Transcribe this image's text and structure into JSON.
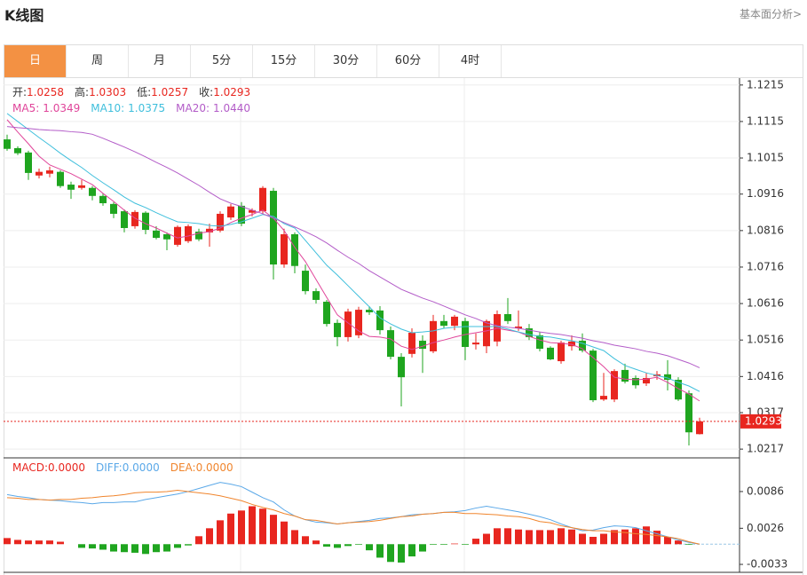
{
  "header": {
    "title": "K线图",
    "link": "基本面分析>"
  },
  "tabs": [
    "日",
    "周",
    "月",
    "5分",
    "15分",
    "30分",
    "60分",
    "4时"
  ],
  "chart_data": [
    {
      "type": "candlestick",
      "info": [
        {
          "label": "开:",
          "value": "1.0258"
        },
        {
          "label": "高:",
          "value": "1.0303"
        },
        {
          "label": "低:",
          "value": "1.0257"
        },
        {
          "label": "收:",
          "value": "1.0293"
        }
      ],
      "up_color": "#e8261f",
      "down_color": "#1fa51f",
      "open": [
        1.1066,
        1.1042,
        1.103,
        1.0967,
        1.0972,
        1.0977,
        1.0942,
        1.0933,
        1.0933,
        1.0911,
        1.0889,
        1.0869,
        1.0828,
        1.0865,
        1.0816,
        1.0806,
        1.0777,
        1.0787,
        1.0813,
        1.0811,
        1.0816,
        1.0852,
        1.0884,
        1.0865,
        1.0869,
        1.0925,
        1.0723,
        1.0806,
        1.0706,
        1.065,
        1.0621,
        1.0563,
        1.0524,
        1.0529,
        1.0599,
        1.0597,
        1.0543,
        1.047,
        1.0478,
        1.0514,
        1.0485,
        1.0568,
        1.0555,
        1.0568,
        1.0504,
        1.0499,
        1.0512,
        1.0587,
        1.0548,
        1.0548,
        1.0529,
        1.0495,
        1.0458,
        1.0499,
        1.0514,
        1.0487,
        1.0353,
        1.0353,
        1.0434,
        1.0412,
        1.0397,
        1.0417,
        1.0422,
        1.0407,
        1.037,
        1.0258
      ],
      "high": [
        1.1079,
        1.1047,
        1.1035,
        1.0986,
        1.0991,
        1.0981,
        1.095,
        1.0955,
        1.0938,
        1.0918,
        1.0894,
        1.0874,
        1.0872,
        1.0869,
        1.0828,
        1.0811,
        1.083,
        1.0833,
        1.0821,
        1.0835,
        1.0869,
        1.0889,
        1.0894,
        1.0877,
        1.0938,
        1.0933,
        1.0821,
        1.0811,
        1.0723,
        1.0658,
        1.0626,
        1.0572,
        1.0602,
        1.0607,
        1.0609,
        1.0609,
        1.0553,
        1.048,
        1.0548,
        1.0529,
        1.0585,
        1.0585,
        1.0585,
        1.0577,
        1.0534,
        1.0572,
        1.0597,
        1.0631,
        1.0597,
        1.056,
        1.0538,
        1.0499,
        1.0514,
        1.0529,
        1.0534,
        1.0492,
        1.0426,
        1.0436,
        1.0451,
        1.0419,
        1.0426,
        1.0431,
        1.0461,
        1.0414,
        1.0378,
        1.0303
      ],
      "low": [
        1.1035,
        1.1023,
        1.0955,
        1.0959,
        1.0962,
        1.0933,
        1.0903,
        1.0928,
        1.0899,
        1.0884,
        1.085,
        1.0811,
        1.0821,
        1.0806,
        1.0792,
        1.0762,
        1.0772,
        1.0782,
        1.0787,
        1.0772,
        1.0811,
        1.0845,
        1.0828,
        1.0855,
        1.0862,
        1.0682,
        1.0714,
        1.0699,
        1.0641,
        1.0616,
        1.0553,
        1.0499,
        1.0512,
        1.0521,
        1.0585,
        1.0531,
        1.0463,
        1.0334,
        1.0468,
        1.0426,
        1.048,
        1.0548,
        1.0543,
        1.0461,
        1.049,
        1.048,
        1.0499,
        1.056,
        1.0541,
        1.0516,
        1.0485,
        1.0461,
        1.0451,
        1.0487,
        1.0482,
        1.0346,
        1.0349,
        1.0346,
        1.0397,
        1.0383,
        1.039,
        1.0407,
        1.0378,
        1.0349,
        1.0227,
        1.0257
      ],
      "close": [
        1.104,
        1.1028,
        1.0974,
        1.0977,
        1.0981,
        1.0938,
        1.0928,
        1.094,
        1.0911,
        1.0891,
        1.0862,
        1.0823,
        1.0867,
        1.0818,
        1.0796,
        1.0792,
        1.0826,
        1.0828,
        1.0792,
        1.0821,
        1.0862,
        1.0882,
        1.0835,
        1.0872,
        1.0933,
        1.0723,
        1.0806,
        1.0719,
        1.065,
        1.0626,
        1.056,
        1.0524,
        1.0594,
        1.0599,
        1.0592,
        1.0543,
        1.047,
        1.0414,
        1.0536,
        1.0492,
        1.0568,
        1.0555,
        1.058,
        1.0497,
        1.0509,
        1.0568,
        1.0587,
        1.0568,
        1.0553,
        1.0524,
        1.0492,
        1.0463,
        1.0509,
        1.0512,
        1.0487,
        1.0351,
        1.0363,
        1.0431,
        1.0402,
        1.0392,
        1.0412,
        1.0422,
        1.0407,
        1.0353,
        1.0263,
        1.0293
      ],
      "series": [
        {
          "name": "MA5:",
          "latest": "1.0349",
          "color": "#e0459a",
          "values": [
            1.112,
            1.1086,
            1.1054,
            1.102,
            1.0996,
            1.0984,
            1.0972,
            1.0957,
            1.0942,
            1.0918,
            1.0896,
            1.0872,
            1.085,
            1.0835,
            1.0823,
            1.0809,
            1.0796,
            1.0801,
            1.0809,
            1.0813,
            1.0823,
            1.0838,
            1.085,
            1.086,
            1.0872,
            1.085,
            1.0816,
            1.077,
            1.0731,
            1.0682,
            1.0633,
            1.0585,
            1.0563,
            1.0541,
            1.0526,
            1.0524,
            1.0519,
            1.0499,
            1.049,
            1.0499,
            1.0509,
            1.0516,
            1.0524,
            1.0531,
            1.0536,
            1.0541,
            1.0548,
            1.0543,
            1.0538,
            1.0526,
            1.0516,
            1.0509,
            1.0507,
            1.0504,
            1.0492,
            1.0468,
            1.0443,
            1.0414,
            1.0409,
            1.0407,
            1.0409,
            1.0414,
            1.04,
            1.0383,
            1.0368,
            1.0349
          ]
        },
        {
          "name": "MA10:",
          "latest": "1.0375",
          "color": "#3fbfdc",
          "values": [
            1.1137,
            1.1115,
            1.1093,
            1.1071,
            1.105,
            1.1028,
            1.1008,
            1.0989,
            1.0967,
            1.0947,
            1.0928,
            1.0908,
            1.0891,
            1.0879,
            1.0865,
            1.0852,
            1.084,
            1.0838,
            1.0835,
            1.083,
            1.0828,
            1.0833,
            1.084,
            1.085,
            1.086,
            1.0855,
            1.0835,
            1.0823,
            1.0789,
            1.0755,
            1.0721,
            1.0694,
            1.0665,
            1.0636,
            1.0607,
            1.0577,
            1.056,
            1.0546,
            1.0536,
            1.0538,
            1.0541,
            1.0548,
            1.0551,
            1.0553,
            1.0553,
            1.0553,
            1.0553,
            1.0546,
            1.0538,
            1.0531,
            1.0526,
            1.0524,
            1.0519,
            1.0514,
            1.0507,
            1.0497,
            1.0487,
            1.0465,
            1.0446,
            1.0436,
            1.0426,
            1.0419,
            1.0412,
            1.04,
            1.039,
            1.0375
          ]
        },
        {
          "name": "MA20:",
          "latest": "1.0440",
          "color": "#b35cc8",
          "values": [
            1.1101,
            1.1098,
            1.1096,
            1.1093,
            1.1091,
            1.109,
            1.1087,
            1.1085,
            1.108,
            1.1069,
            1.1057,
            1.1045,
            1.1032,
            1.1018,
            1.1003,
            1.0989,
            1.0974,
            1.0957,
            1.094,
            1.0921,
            1.0903,
            1.0891,
            1.0882,
            1.0872,
            1.0862,
            1.085,
            1.0838,
            1.0826,
            1.0813,
            1.0799,
            1.0782,
            1.0762,
            1.0743,
            1.0726,
            1.0706,
            1.0689,
            1.0672,
            1.0655,
            1.0643,
            1.0631,
            1.0621,
            1.0609,
            1.0597,
            1.0585,
            1.0575,
            1.0563,
            1.0555,
            1.0551,
            1.0548,
            1.0543,
            1.0538,
            1.0534,
            1.0531,
            1.0526,
            1.0521,
            1.0514,
            1.0509,
            1.0502,
            1.0497,
            1.0492,
            1.0485,
            1.048,
            1.0473,
            1.0463,
            1.0453,
            1.044
          ]
        }
      ],
      "ylim": [
        1.0193,
        1.1234
      ],
      "yticks": [
        1.1215,
        1.1115,
        1.1015,
        1.0916,
        1.0816,
        1.0716,
        1.0616,
        1.0516,
        1.0416,
        1.0317,
        1.0217
      ],
      "grid": true
    },
    {
      "type": "macd",
      "histogram": {
        "name": "MACD:",
        "latest": "0.0000",
        "color": "#e8261f",
        "up_color": "#e8261f",
        "down_color": "#1fa51f",
        "values": [
          0.001,
          0.0007,
          0.0006,
          0.0006,
          0.0006,
          0.0004,
          0,
          -0.0006,
          -0.0007,
          -0.0009,
          -0.0012,
          -0.0013,
          -0.0014,
          -0.0016,
          -0.0013,
          -0.0012,
          -0.0006,
          -0.0002,
          0.0013,
          0.0026,
          0.0039,
          0.005,
          0.0055,
          0.0062,
          0.0058,
          0.0048,
          0.0037,
          0.0023,
          0.0013,
          0.0006,
          -0.0004,
          -0.0006,
          -0.0003,
          -0.0001,
          -0.001,
          -0.0022,
          -0.0029,
          -0.003,
          -0.002,
          -0.0012,
          -0.0001,
          -0.0001,
          0.0001,
          -0.0001,
          0.0009,
          0.0017,
          0.0026,
          0.0026,
          0.0024,
          0.0023,
          0.0023,
          0.0023,
          0.0026,
          0.0024,
          0.0017,
          0.0012,
          0.0017,
          0.0023,
          0.0024,
          0.0026,
          0.0029,
          0.0022,
          0.0012,
          0.0006,
          -0.0001,
          0
        ]
      },
      "series": [
        {
          "name": "DIFF:",
          "latest": "0.0000",
          "color": "#5aa8e8",
          "values": [
            0.0081,
            0.0078,
            0.0076,
            0.0073,
            0.0072,
            0.0071,
            0.0069,
            0.0068,
            0.0066,
            0.0068,
            0.0068,
            0.0069,
            0.0069,
            0.0073,
            0.0076,
            0.0079,
            0.0082,
            0.0086,
            0.0091,
            0.0096,
            0.0101,
            0.0098,
            0.0094,
            0.0085,
            0.0076,
            0.0069,
            0.0056,
            0.0046,
            0.004,
            0.0036,
            0.0035,
            0.0033,
            0.0035,
            0.0037,
            0.0039,
            0.0042,
            0.0043,
            0.0045,
            0.0048,
            0.0049,
            0.005,
            0.0052,
            0.0053,
            0.0055,
            0.0059,
            0.0062,
            0.0059,
            0.0056,
            0.0053,
            0.0049,
            0.0045,
            0.004,
            0.0033,
            0.0027,
            0.0022,
            0.0023,
            0.0027,
            0.003,
            0.0029,
            0.0027,
            0.0022,
            0.0017,
            0.0012,
            0.0007,
            0.0003,
            0
          ]
        },
        {
          "name": "DEA:",
          "latest": "0.0000",
          "color": "#f0852d",
          "values": [
            0.0076,
            0.0075,
            0.0073,
            0.0073,
            0.0072,
            0.0073,
            0.0073,
            0.0075,
            0.0076,
            0.0078,
            0.0079,
            0.0081,
            0.0084,
            0.0085,
            0.0085,
            0.0086,
            0.0088,
            0.0086,
            0.0084,
            0.0082,
            0.0079,
            0.0075,
            0.0071,
            0.0065,
            0.006,
            0.0056,
            0.005,
            0.0046,
            0.004,
            0.0039,
            0.0036,
            0.0033,
            0.0035,
            0.0036,
            0.0037,
            0.0039,
            0.0042,
            0.0045,
            0.0046,
            0.0049,
            0.005,
            0.0052,
            0.0052,
            0.005,
            0.005,
            0.0049,
            0.0048,
            0.0046,
            0.0045,
            0.0042,
            0.0037,
            0.0035,
            0.003,
            0.0027,
            0.0024,
            0.0022,
            0.0022,
            0.002,
            0.0019,
            0.0017,
            0.0016,
            0.0014,
            0.0012,
            0.0009,
            0.0004,
            0
          ]
        }
      ],
      "ylim": [
        -0.0046,
        0.0141
      ],
      "yticks": [
        0.0086,
        0.0026,
        -0.0033
      ]
    }
  ]
}
